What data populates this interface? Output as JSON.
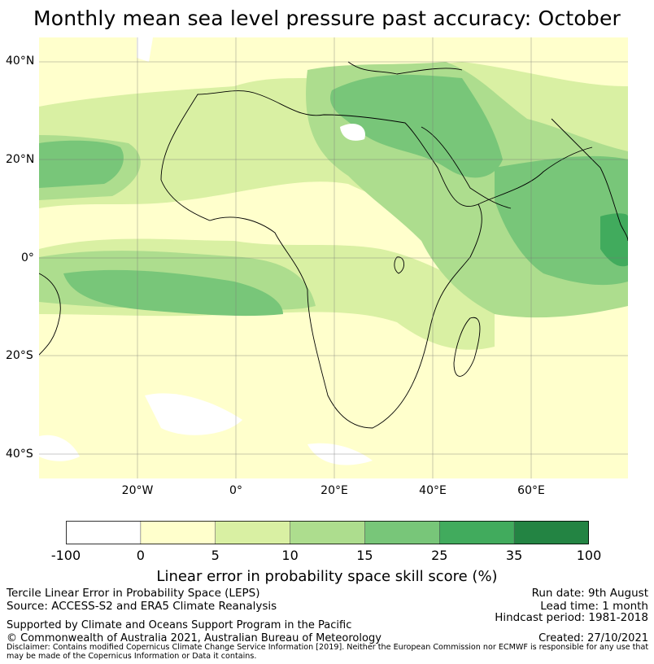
{
  "title": "Monthly mean sea level pressure past accuracy: October",
  "map": {
    "lat_labels": [
      "40°N",
      "20°N",
      "0°",
      "20°S",
      "40°S"
    ],
    "lon_labels": [
      "20°W",
      "0°",
      "20°E",
      "40°E",
      "60°E"
    ],
    "extent": {
      "lon": [
        -40,
        80
      ],
      "lat": [
        -45,
        45
      ]
    },
    "gridlines": true
  },
  "colorbar": {
    "ticks": [
      "-100",
      "0",
      "5",
      "10",
      "15",
      "25",
      "35",
      "100"
    ],
    "colors": [
      "#ffffff",
      "#ffffcc",
      "#d9f0a3",
      "#addd8e",
      "#78c679",
      "#41ab5d",
      "#238443"
    ],
    "label": "Linear error in probability space skill score (%)"
  },
  "footer": {
    "left_line1": "Tercile Linear Error in Probability Space (LEPS)",
    "left_line2": "Source: ACCESS-S2 and ERA5 Climate Reanalysis",
    "support": "Supported by Climate and Oceans Support Program in the Pacific",
    "copyright": "© Commonwealth of Australia 2021, Australian Bureau of Meteorology",
    "run_date": "Run date: 9th August",
    "lead_time": "Lead time: 1 month",
    "hindcast": "Hindcast period: 1981-2018",
    "created": "Created: 27/10/2021",
    "disclaimer": "Disclaimer: Contains modified Copernicus Climate Change Service Information [2019]. Neither the European Commission nor ECMWF is responsible for any use that may be made of the Copernicus Information or Data it contains."
  }
}
